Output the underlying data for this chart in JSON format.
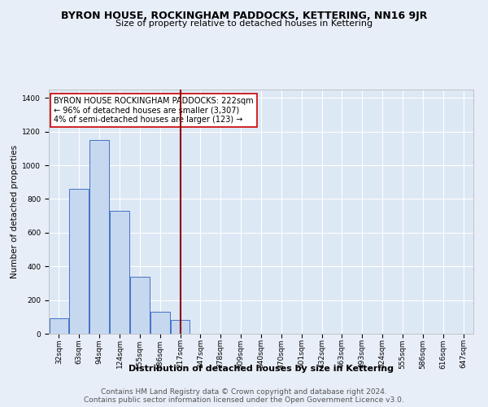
{
  "title": "BYRON HOUSE, ROCKINGHAM PADDOCKS, KETTERING, NN16 9JR",
  "subtitle": "Size of property relative to detached houses in Kettering",
  "xlabel": "Distribution of detached houses by size in Kettering",
  "ylabel": "Number of detached properties",
  "categories": [
    "32sqm",
    "63sqm",
    "94sqm",
    "124sqm",
    "155sqm",
    "186sqm",
    "217sqm",
    "247sqm",
    "278sqm",
    "309sqm",
    "340sqm",
    "370sqm",
    "401sqm",
    "432sqm",
    "463sqm",
    "493sqm",
    "524sqm",
    "555sqm",
    "586sqm",
    "616sqm",
    "647sqm"
  ],
  "values": [
    93,
    860,
    1150,
    730,
    340,
    130,
    80,
    0,
    0,
    0,
    0,
    0,
    0,
    0,
    0,
    0,
    0,
    0,
    0,
    0,
    0
  ],
  "bar_color": "#c5d8f0",
  "bar_edge_color": "#4472c4",
  "highlight_index": 6,
  "highlight_color": "#8b0000",
  "annotation_text": "BYRON HOUSE ROCKINGHAM PADDOCKS: 222sqm\n← 96% of detached houses are smaller (3,307)\n4% of semi-detached houses are larger (123) →",
  "annotation_box_color": "white",
  "annotation_box_edge_color": "#cc0000",
  "ylim": [
    0,
    1450
  ],
  "yticks": [
    0,
    200,
    400,
    600,
    800,
    1000,
    1200,
    1400
  ],
  "footer_line1": "Contains HM Land Registry data © Crown copyright and database right 2024.",
  "footer_line2": "Contains public sector information licensed under the Open Government Licence v3.0.",
  "background_color": "#e8eef8",
  "plot_bg_color": "#dde8f5",
  "grid_color": "white",
  "title_fontsize": 9,
  "subtitle_fontsize": 8,
  "xlabel_fontsize": 8,
  "ylabel_fontsize": 7.5,
  "tick_fontsize": 6.5,
  "annotation_fontsize": 7,
  "footer_fontsize": 6.5
}
